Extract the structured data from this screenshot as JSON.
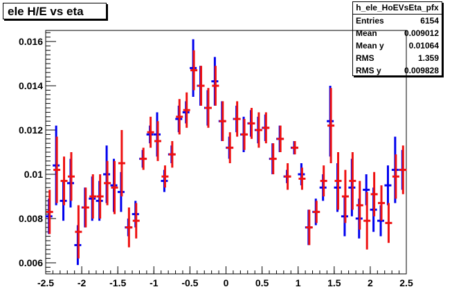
{
  "title": "ele H/E vs eta",
  "stats": {
    "name": "h_ele_HoEVsEta_pfx",
    "rows": [
      {
        "label": "Entries",
        "value": "6154"
      },
      {
        "label": "Mean",
        "value": "0.009012"
      },
      {
        "label": "Mean y",
        "value": "0.01064"
      },
      {
        "label": "RMS",
        "value": "1.359"
      },
      {
        "label": "RMS y",
        "value": "0.009828"
      }
    ]
  },
  "colors": {
    "blue": "#0000ee",
    "red": "#ee1111"
  },
  "chart_data": {
    "type": "scatter",
    "title": "ele H/E vs eta",
    "xlim": [
      -2.5,
      2.5
    ],
    "ylim": [
      0.0055,
      0.0165
    ],
    "xticks": [
      -2.5,
      -2,
      -1.5,
      -1,
      -0.5,
      0,
      0.5,
      1,
      1.5,
      2,
      2.5
    ],
    "xtick_labels": [
      "-2.5",
      "-2",
      "-1.5",
      "-1",
      "-0.5",
      "0",
      "0.5",
      "1",
      "1.5",
      "2",
      "2.5"
    ],
    "yticks": [
      0.006,
      0.008,
      0.01,
      0.012,
      0.014,
      0.016
    ],
    "ytick_labels": [
      "0.006",
      "0.008",
      "0.01",
      "0.012",
      "0.014",
      "0.016"
    ],
    "series": [
      {
        "color": "blue",
        "x": [
          -2.45,
          -2.35,
          -2.25,
          -2.15,
          -2.05,
          -1.95,
          -1.85,
          -1.75,
          -1.65,
          -1.55,
          -1.45,
          -1.35,
          -1.25,
          -1.15,
          -1.05,
          -0.95,
          -0.85,
          -0.75,
          -0.65,
          -0.55,
          -0.45,
          -0.35,
          -0.25,
          -0.15,
          -0.05,
          0.05,
          0.15,
          0.25,
          0.35,
          0.45,
          0.55,
          0.65,
          0.75,
          0.85,
          0.95,
          1.05,
          1.15,
          1.25,
          1.35,
          1.45,
          1.55,
          1.65,
          1.75,
          1.85,
          1.95,
          2.05,
          2.15,
          2.25,
          2.35,
          2.45
        ],
        "y": [
          0.0081,
          0.0104,
          0.0088,
          0.0096,
          0.0068,
          0.0085,
          0.0089,
          0.0088,
          0.01,
          0.0095,
          0.0092,
          0.0076,
          0.0082,
          0.0107,
          0.0118,
          0.0118,
          0.0097,
          0.0109,
          0.0125,
          0.0128,
          0.0148,
          0.014,
          0.013,
          0.0142,
          0.0124,
          0.0112,
          0.0125,
          0.0118,
          0.0123,
          0.012,
          0.0121,
          0.0107,
          0.0116,
          0.0099,
          0.0112,
          0.01,
          0.0076,
          0.0083,
          0.0094,
          0.0124,
          0.0094,
          0.0081,
          0.0094,
          0.008,
          0.0093,
          0.0084,
          0.0079,
          0.0095,
          0.0102,
          0.0102
        ],
        "err": [
          0.0008,
          0.0018,
          0.0009,
          0.0011,
          0.0009,
          0.0009,
          0.001,
          0.0009,
          0.0013,
          0.0012,
          0.0009,
          0.0004,
          0.0006,
          0.0004,
          0.0004,
          0.001,
          0.0005,
          0.0004,
          0.0006,
          0.0005,
          0.0013,
          0.0009,
          0.0008,
          0.0011,
          0.0009,
          0.0005,
          0.0006,
          0.0008,
          0.0006,
          0.0006,
          0.0006,
          0.0007,
          0.0006,
          0.0003,
          0.0003,
          0.0005,
          0.0008,
          0.0006,
          0.0006,
          0.0016,
          0.0011,
          0.0009,
          0.0013,
          0.0009,
          0.0007,
          0.001,
          0.0007,
          0.0009,
          0.0015,
          0.0009
        ]
      },
      {
        "color": "red",
        "x": [
          -2.45,
          -2.35,
          -2.25,
          -2.15,
          -2.05,
          -1.95,
          -1.85,
          -1.75,
          -1.65,
          -1.55,
          -1.45,
          -1.35,
          -1.25,
          -1.15,
          -1.05,
          -0.95,
          -0.85,
          -0.75,
          -0.65,
          -0.55,
          -0.45,
          -0.35,
          -0.25,
          -0.15,
          -0.05,
          0.05,
          0.15,
          0.25,
          0.35,
          0.45,
          0.55,
          0.65,
          0.75,
          0.85,
          0.95,
          1.05,
          1.15,
          1.25,
          1.35,
          1.45,
          1.55,
          1.65,
          1.75,
          1.85,
          1.95,
          2.05,
          2.15,
          2.25,
          2.35,
          2.45
        ],
        "y": [
          0.0083,
          0.0102,
          0.0097,
          0.0099,
          0.0074,
          0.0085,
          0.009,
          0.009,
          0.0096,
          0.0094,
          0.0105,
          0.0076,
          0.0079,
          0.0107,
          0.0119,
          0.0115,
          0.0099,
          0.0109,
          0.0126,
          0.0129,
          0.0147,
          0.014,
          0.013,
          0.014,
          0.0124,
          0.0112,
          0.0125,
          0.0118,
          0.0123,
          0.012,
          0.0121,
          0.0107,
          0.0116,
          0.0099,
          0.0112,
          0.0098,
          0.0076,
          0.0083,
          0.0097,
          0.0122,
          0.0097,
          0.009,
          0.0097,
          0.0086,
          0.0079,
          0.0091,
          0.0087,
          0.0078,
          0.0099,
          0.0102
        ],
        "err": [
          0.001,
          0.0015,
          0.0011,
          0.0011,
          0.0012,
          0.0009,
          0.001,
          0.001,
          0.001,
          0.0012,
          0.0015,
          0.0009,
          0.0008,
          0.0005,
          0.0007,
          0.0009,
          0.0005,
          0.0006,
          0.0008,
          0.0008,
          0.0009,
          0.0009,
          0.0009,
          0.0009,
          0.0009,
          0.0007,
          0.0008,
          0.0007,
          0.0007,
          0.0008,
          0.0007,
          0.0007,
          0.0006,
          0.0006,
          0.0003,
          0.0005,
          0.0008,
          0.0005,
          0.0007,
          0.0017,
          0.0013,
          0.0012,
          0.0013,
          0.0011,
          0.0013,
          0.001,
          0.0008,
          0.0009,
          0.001,
          0.0011
        ]
      }
    ]
  }
}
